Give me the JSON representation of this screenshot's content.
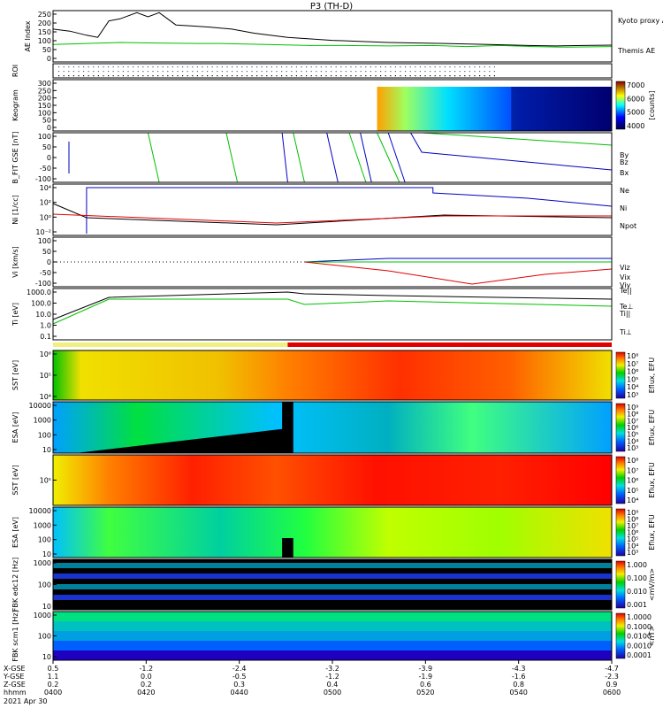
{
  "title": "P3 (TH-D)",
  "date": "2021 Apr 30",
  "colors": {
    "black": "#000000",
    "green": "#00c000",
    "red": "#e00000",
    "blue": "#0000c0",
    "yellow": "#f0e000",
    "lime": "#00dd00"
  },
  "footer": {
    "row_labels": [
      "X-GSE",
      "Y-GSE",
      "Z-GSE",
      "hhmm"
    ],
    "x_gse": [
      "0.5",
      "-1.2",
      "-2.4",
      "-3.2",
      "-3.9",
      "-4.3",
      "-4.7"
    ],
    "y_gse": [
      "1.1",
      "0.0",
      "-0.5",
      "-1.2",
      "-1.9",
      "-1.6",
      "-2.3"
    ],
    "z_gse": [
      "0.2",
      "0.2",
      "0.3",
      "0.4",
      "0.6",
      "0.8",
      "0.9"
    ],
    "hhmm": [
      "0400",
      "0420",
      "0440",
      "0500",
      "0520",
      "0540",
      "0600"
    ]
  },
  "chart_data": [
    {
      "id": "ae",
      "type": "line",
      "ylabel": "AE Index",
      "ylim": [
        0,
        250
      ],
      "ticks": [
        "250",
        "200",
        "150",
        "100",
        "50",
        "0"
      ],
      "series": [
        {
          "name": "Kyoto proxy AE",
          "color": "#00c000",
          "x": [
            0,
            0.06,
            0.12,
            0.2,
            0.26,
            0.3,
            0.38,
            0.46,
            0.52,
            0.6,
            0.68,
            0.74,
            0.8,
            0.86,
            0.92,
            1
          ],
          "y": [
            85,
            90,
            95,
            92,
            90,
            90,
            85,
            80,
            80,
            78,
            80,
            75,
            80,
            75,
            72,
            75
          ]
        },
        {
          "name": "Themis AE",
          "color": "#000000",
          "x": [
            0,
            0.03,
            0.06,
            0.08,
            0.1,
            0.12,
            0.15,
            0.17,
            0.19,
            0.22,
            0.25,
            0.28,
            0.32,
            0.36,
            0.42,
            0.5,
            0.6,
            0.7,
            0.78,
            0.85,
            0.9,
            0.95,
            1
          ],
          "y": [
            160,
            150,
            130,
            120,
            200,
            210,
            240,
            220,
            240,
            180,
            175,
            170,
            160,
            140,
            120,
            105,
            95,
            90,
            85,
            80,
            78,
            80,
            82
          ]
        }
      ],
      "legend": [
        "Kyoto proxy AE",
        "Themis AE"
      ]
    },
    {
      "id": "roi",
      "type": "scatter",
      "ylabel": "ROI",
      "ticks": []
    },
    {
      "id": "keogram",
      "type": "heatmap",
      "ylabel": "Keogram",
      "ylim": [
        0,
        300
      ],
      "ticks": [
        "300",
        "250",
        "200",
        "150",
        "100",
        "50",
        "0"
      ],
      "colorbar": {
        "label": "[counts]",
        "ticks": [
          "7000",
          "6000",
          "5000",
          "4000"
        ]
      }
    },
    {
      "id": "bfit",
      "type": "line",
      "ylabel": "B_FIT GSE [nT]",
      "ylim": [
        -100,
        100
      ],
      "ticks": [
        "100",
        "50",
        "0",
        "-50",
        "-100"
      ],
      "legend": [
        "Bz",
        "By",
        "Bx"
      ]
    },
    {
      "id": "ni",
      "type": "line",
      "ylabel": "Ni [1/cc]",
      "ticks": [
        "10⁴",
        "10²",
        "10⁰",
        "10⁻²"
      ],
      "legend": [
        "Ne",
        "Ni",
        "Npot"
      ]
    },
    {
      "id": "vi",
      "type": "line",
      "ylabel": "Vi [km/s]",
      "ylim": [
        -100,
        100
      ],
      "ticks": [
        "100",
        "50",
        "0",
        "-50",
        "-100"
      ],
      "legend": [
        "Viz",
        "Viy",
        "Vix"
      ]
    },
    {
      "id": "ti",
      "type": "line",
      "ylabel": "Ti [eV]",
      "ticks": [
        "1000.0",
        "100.0",
        "10.0",
        "1.0",
        "0.1"
      ],
      "legend": [
        "Te||",
        "Te⊥",
        "Ti||",
        "Ti⊥"
      ]
    },
    {
      "id": "sst_i",
      "type": "heatmap",
      "ylabel": "SST [eV]",
      "ticks": [
        "10⁶",
        "10⁵",
        "10⁴"
      ],
      "colorbar": {
        "label": "Eflux, EFU",
        "ticks": [
          "10⁸",
          "10⁷",
          "10⁶",
          "10⁵",
          "10⁴",
          "10³"
        ]
      }
    },
    {
      "id": "esa_i",
      "type": "heatmap",
      "ylabel": "ESA [eV]",
      "ticks": [
        "10000",
        "1000",
        "100",
        "10"
      ],
      "colorbar": {
        "label": "Eflux, EFU",
        "ticks": [
          "10⁹",
          "10⁸",
          "10⁷",
          "10⁶",
          "10⁵",
          "10⁴",
          "10³"
        ]
      }
    },
    {
      "id": "sst_e",
      "type": "heatmap",
      "ylabel": "SST [eV]",
      "ticks": [
        "10⁵"
      ],
      "colorbar": {
        "label": "Eflux, EFU",
        "ticks": [
          "10⁸",
          "10⁷",
          "10⁶",
          "10⁵",
          "10⁴"
        ]
      }
    },
    {
      "id": "esa_e",
      "type": "heatmap",
      "ylabel": "ESA [eV]",
      "ticks": [
        "10000",
        "1000",
        "100",
        "10"
      ],
      "colorbar": {
        "label": "Eflux, EFU",
        "ticks": [
          "10⁹",
          "10⁸",
          "10⁷",
          "10⁶",
          "10⁵",
          "10⁴",
          "10³"
        ]
      }
    },
    {
      "id": "fbk_e",
      "type": "heatmap",
      "ylabel": "FBK edc12 [Hz]",
      "ticks": [
        "1000",
        "100",
        "10"
      ],
      "colorbar": {
        "label": "<mV/m>",
        "ticks": [
          "1.000",
          "0.100",
          "0.010",
          "0.001"
        ]
      }
    },
    {
      "id": "fbk_b",
      "type": "heatmap",
      "ylabel": "FBK scm1 [Hz]",
      "ticks": [
        "1000",
        "100",
        "10"
      ],
      "colorbar": {
        "label": "<nT>",
        "ticks": [
          "1.0000",
          "0.1000",
          "0.0100",
          "0.0010",
          "0.0001"
        ]
      }
    }
  ]
}
